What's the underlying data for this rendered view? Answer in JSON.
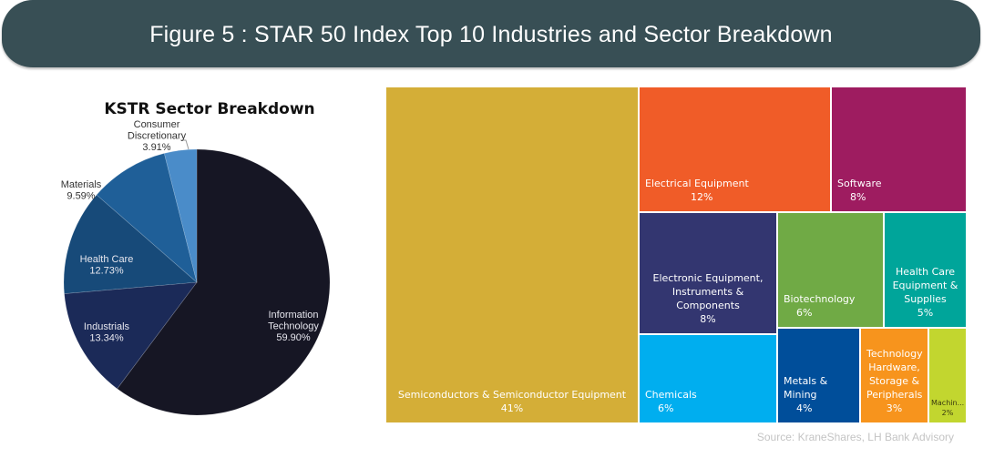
{
  "banner": {
    "title": "Figure 5 : STAR 50 Index Top 10 Industries and Sector Breakdown"
  },
  "source": "Source: KraneShares, LH Bank Advisory",
  "chart_data": [
    {
      "type": "pie",
      "title": "KSTR Sector Breakdown",
      "slices": [
        {
          "label": "Information Technology",
          "value": 59.9,
          "display": "59.90%",
          "color": "#161624"
        },
        {
          "label": "Industrials",
          "value": 13.34,
          "display": "13.34%",
          "color": "#1b2a58"
        },
        {
          "label": "Health Care",
          "value": 12.73,
          "display": "12.73%",
          "color": "#174a79"
        },
        {
          "label": "Materials",
          "value": 9.59,
          "display": "9.59%",
          "color": "#1f5f98"
        },
        {
          "label": "Consumer Discretionary",
          "value": 3.91,
          "display": "3.91%",
          "color": "#4a8cc9"
        }
      ],
      "label_lines": {
        "Information Technology": [
          "Information",
          "Technology",
          "59.90%"
        ],
        "Industrials": [
          "Industrials",
          "13.34%"
        ],
        "Health Care": [
          "Health Care",
          "12.73%"
        ],
        "Materials": [
          "Materials",
          "9.59%"
        ],
        "Consumer Discretionary": [
          "Consumer",
          "Discretionary",
          "3.91%"
        ]
      }
    },
    {
      "type": "treemap",
      "title": "STAR 50 Index Top 10 Industries",
      "items": [
        {
          "label": "Semiconductors & Semiconductor Equipment",
          "value": 41,
          "display": "41%",
          "color": "#d4ae37",
          "text_color": "#ffffff"
        },
        {
          "label": "Electrical Equipment",
          "value": 12,
          "display": "12%",
          "color": "#f05c28",
          "text_color": "#ffffff"
        },
        {
          "label": "Software",
          "value": 8,
          "display": "8%",
          "color": "#9e1c60",
          "text_color": "#ffffff"
        },
        {
          "label": "Electronic Equipment, Instruments & Components",
          "value": 8,
          "display": "8%",
          "color": "#333670",
          "text_color": "#ffffff"
        },
        {
          "label": "Biotechnology",
          "value": 6,
          "display": "6%",
          "color": "#70aa45",
          "text_color": "#ffffff"
        },
        {
          "label": "Health Care Equipment & Supplies",
          "value": 5,
          "display": "5%",
          "color": "#00a59a",
          "text_color": "#ffffff"
        },
        {
          "label": "Chemicals",
          "value": 6,
          "display": "6%",
          "color": "#00aeef",
          "text_color": "#ffffff"
        },
        {
          "label": "Metals & Mining",
          "value": 4,
          "display": "4%",
          "color": "#004e9a",
          "text_color": "#ffffff"
        },
        {
          "label": "Technology Hardware, Storage & Peripherals",
          "value": 3,
          "display": "3%",
          "color": "#f7941d",
          "text_color": "#ffffff"
        },
        {
          "label": "Machin...",
          "value": 2,
          "display": "2%",
          "color": "#c2d62f",
          "text_color": "#3a3a10"
        }
      ]
    }
  ]
}
